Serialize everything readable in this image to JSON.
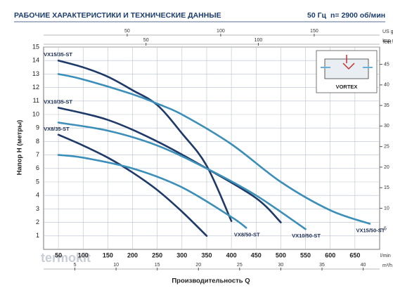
{
  "chart_data": {
    "type": "line",
    "title": "РАБОЧИЕ ХАРАКТЕРИСТИКИ И ТЕХНИЧЕСКИЕ ДАННЫЕ",
    "frequency": "50 Гц",
    "speed": "n= 2900 об/мин",
    "x_label": "Производительность Q",
    "y_label": "Напор H (метры)",
    "x_unit": "l/min",
    "xlim": [
      20,
      700
    ],
    "xticks": [
      50,
      100,
      150,
      200,
      250,
      300,
      350,
      400,
      450,
      500,
      550,
      600,
      650
    ],
    "ylim": [
      0,
      15
    ],
    "yticks": [
      1,
      2,
      3,
      4,
      5,
      6,
      7,
      8,
      9,
      10,
      11,
      12,
      13,
      14,
      15
    ],
    "y2_unit": "feet",
    "y2lim": [
      0,
      49.2
    ],
    "y2ticks": [
      5,
      10,
      15,
      20,
      25,
      30,
      35,
      40,
      45
    ],
    "extra_x_axes": [
      {
        "unit": "US gpm",
        "position": "top",
        "lim": [
          5.3,
          185
        ],
        "ticks": [
          50,
          100,
          150
        ]
      },
      {
        "unit": "Imp gpm",
        "position": "top",
        "lim": [
          4.4,
          154
        ],
        "ticks": [
          50,
          100
        ]
      },
      {
        "unit": "m³/h",
        "position": "bottom",
        "lim": [
          1.2,
          42
        ],
        "ticks": [
          5,
          10,
          15,
          20,
          25,
          30,
          35,
          40
        ]
      }
    ],
    "grid": true,
    "inset_label": "VORTEX",
    "watermark": "termokit",
    "series": [
      {
        "name": "VX15/35-ST",
        "color": "#1f3a68",
        "x": [
          50,
          100,
          150,
          200,
          250,
          300,
          350,
          400
        ],
        "values": [
          14,
          13.5,
          12.8,
          11.8,
          10.7,
          8.6,
          6.2,
          2.1
        ]
      },
      {
        "name": "VX15/50-ST",
        "color": "#3b8fb8",
        "x": [
          50,
          100,
          200,
          250,
          300,
          400,
          500,
          600,
          680
        ],
        "values": [
          13,
          12.6,
          11.5,
          10.8,
          10,
          7.8,
          5,
          2.9,
          1.9
        ]
      },
      {
        "name": "VX10/35-ST",
        "color": "#1f3a68",
        "x": [
          50,
          150,
          250,
          350,
          450,
          500
        ],
        "values": [
          10.5,
          9.6,
          8,
          6,
          3.8,
          2
        ]
      },
      {
        "name": "VX10/50-ST",
        "color": "#3b8fb8",
        "x": [
          50,
          150,
          250,
          350,
          450,
          550
        ],
        "values": [
          9.4,
          8.8,
          7.7,
          6,
          4,
          1.5
        ]
      },
      {
        "name": "VX8/35-ST",
        "color": "#1f3a68",
        "x": [
          50,
          100,
          150,
          200,
          250,
          300,
          350
        ],
        "values": [
          8.5,
          7.7,
          6.8,
          5.7,
          4.4,
          2.8,
          1
        ]
      },
      {
        "name": "VX8/50-ST",
        "color": "#3b8fb8",
        "x": [
          50,
          100,
          200,
          300,
          400,
          430
        ],
        "values": [
          7,
          6.8,
          6,
          4.6,
          2.4,
          1.6
        ]
      }
    ]
  }
}
